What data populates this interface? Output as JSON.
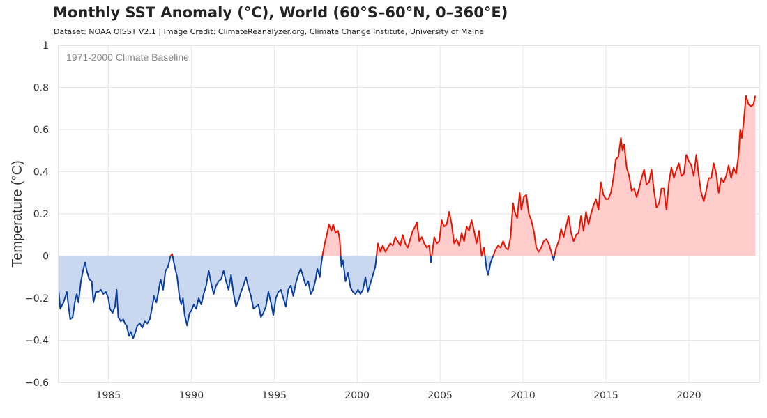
{
  "title": "Monthly SST Anomaly (°C), World (60°S–60°N, 0–360°E)",
  "subtitle": "Dataset: NOAA OISST V2.1 | Image Credit: ClimateReanalyzer.org, Climate Change Institute, University of Maine",
  "chart_data": {
    "type": "area",
    "title": "Monthly SST Anomaly (°C), World (60°S–60°N, 0–360°E)",
    "xlabel": "",
    "ylabel": "Temperature (°C)",
    "annotation": "1971-2000 Climate Baseline",
    "xlim": [
      1982.0,
      2024.25
    ],
    "ylim": [
      -0.6,
      1.0
    ],
    "xticks": [
      1985,
      1990,
      1995,
      2000,
      2005,
      2010,
      2015,
      2020
    ],
    "xtick_labels": [
      "1985",
      "1990",
      "1995",
      "2000",
      "2005",
      "2010",
      "2015",
      "2020"
    ],
    "yticks": [
      -0.6,
      -0.4,
      -0.2,
      0,
      0.2,
      0.4,
      0.6,
      0.8,
      1
    ],
    "ytick_labels": [
      "−0.6",
      "−0.4",
      "−0.2",
      "0",
      "0.2",
      "0.4",
      "0.6",
      "0.8",
      "1"
    ],
    "grid": true,
    "colors": {
      "positive_line": "#ee1100",
      "positive_fill": "#ffcccc",
      "negative_line": "#0a3fa0",
      "negative_fill": "#cad8ef",
      "grid": "#e6e6e6",
      "axis": "#cccccc"
    },
    "series": [
      {
        "name": "Monthly SST Anomaly",
        "points": [
          [
            1982.0,
            -0.16
          ],
          [
            1982.1,
            -0.25
          ],
          [
            1982.3,
            -0.22
          ],
          [
            1982.5,
            -0.17
          ],
          [
            1982.6,
            -0.24
          ],
          [
            1982.7,
            -0.3
          ],
          [
            1982.85,
            -0.29
          ],
          [
            1983.0,
            -0.21
          ],
          [
            1983.1,
            -0.18
          ],
          [
            1983.2,
            -0.22
          ],
          [
            1983.35,
            -0.12
          ],
          [
            1983.5,
            -0.06
          ],
          [
            1983.6,
            -0.03
          ],
          [
            1983.7,
            -0.07
          ],
          [
            1983.85,
            -0.11
          ],
          [
            1984.0,
            -0.12
          ],
          [
            1984.1,
            -0.22
          ],
          [
            1984.25,
            -0.17
          ],
          [
            1984.4,
            -0.17
          ],
          [
            1984.55,
            -0.16
          ],
          [
            1984.7,
            -0.18
          ],
          [
            1984.85,
            -0.17
          ],
          [
            1985.0,
            -0.2
          ],
          [
            1985.1,
            -0.25
          ],
          [
            1985.25,
            -0.27
          ],
          [
            1985.4,
            -0.24
          ],
          [
            1985.5,
            -0.16
          ],
          [
            1985.6,
            -0.29
          ],
          [
            1985.75,
            -0.31
          ],
          [
            1985.9,
            -0.3
          ],
          [
            1986.0,
            -0.32
          ],
          [
            1986.1,
            -0.33
          ],
          [
            1986.25,
            -0.38
          ],
          [
            1986.35,
            -0.36
          ],
          [
            1986.5,
            -0.39
          ],
          [
            1986.6,
            -0.37
          ],
          [
            1986.75,
            -0.33
          ],
          [
            1986.9,
            -0.32
          ],
          [
            1987.05,
            -0.34
          ],
          [
            1987.2,
            -0.31
          ],
          [
            1987.35,
            -0.32
          ],
          [
            1987.5,
            -0.3
          ],
          [
            1987.65,
            -0.24
          ],
          [
            1987.75,
            -0.19
          ],
          [
            1987.9,
            -0.22
          ],
          [
            1988.0,
            -0.18
          ],
          [
            1988.15,
            -0.11
          ],
          [
            1988.3,
            -0.16
          ],
          [
            1988.45,
            -0.07
          ],
          [
            1988.6,
            -0.05
          ],
          [
            1988.75,
            -0.0
          ],
          [
            1988.85,
            0.01
          ],
          [
            1989.0,
            -0.05
          ],
          [
            1989.15,
            -0.1
          ],
          [
            1989.3,
            -0.2
          ],
          [
            1989.4,
            -0.23
          ],
          [
            1989.5,
            -0.2
          ],
          [
            1989.6,
            -0.28
          ],
          [
            1989.75,
            -0.33
          ],
          [
            1989.9,
            -0.27
          ],
          [
            1990.0,
            -0.26
          ],
          [
            1990.15,
            -0.23
          ],
          [
            1990.3,
            -0.25
          ],
          [
            1990.45,
            -0.2
          ],
          [
            1990.6,
            -0.23
          ],
          [
            1990.75,
            -0.18
          ],
          [
            1990.9,
            -0.14
          ],
          [
            1991.05,
            -0.07
          ],
          [
            1991.2,
            -0.13
          ],
          [
            1991.35,
            -0.18
          ],
          [
            1991.5,
            -0.14
          ],
          [
            1991.65,
            -0.12
          ],
          [
            1991.8,
            -0.11
          ],
          [
            1991.95,
            -0.07
          ],
          [
            1992.1,
            -0.12
          ],
          [
            1992.25,
            -0.16
          ],
          [
            1992.4,
            -0.09
          ],
          [
            1992.55,
            -0.18
          ],
          [
            1992.7,
            -0.24
          ],
          [
            1992.85,
            -0.21
          ],
          [
            1993.0,
            -0.17
          ],
          [
            1993.15,
            -0.14
          ],
          [
            1993.3,
            -0.1
          ],
          [
            1993.45,
            -0.15
          ],
          [
            1993.6,
            -0.19
          ],
          [
            1993.75,
            -0.25
          ],
          [
            1993.9,
            -0.24
          ],
          [
            1994.05,
            -0.23
          ],
          [
            1994.2,
            -0.29
          ],
          [
            1994.35,
            -0.27
          ],
          [
            1994.5,
            -0.24
          ],
          [
            1994.65,
            -0.17
          ],
          [
            1994.8,
            -0.22
          ],
          [
            1994.95,
            -0.28
          ],
          [
            1995.1,
            -0.2
          ],
          [
            1995.25,
            -0.17
          ],
          [
            1995.4,
            -0.16
          ],
          [
            1995.55,
            -0.2
          ],
          [
            1995.7,
            -0.24
          ],
          [
            1995.85,
            -0.16
          ],
          [
            1996.0,
            -0.14
          ],
          [
            1996.15,
            -0.19
          ],
          [
            1996.3,
            -0.13
          ],
          [
            1996.45,
            -0.09
          ],
          [
            1996.6,
            -0.06
          ],
          [
            1996.75,
            -0.1
          ],
          [
            1996.9,
            -0.14
          ],
          [
            1997.05,
            -0.12
          ],
          [
            1997.2,
            -0.18
          ],
          [
            1997.35,
            -0.16
          ],
          [
            1997.5,
            -0.11
          ],
          [
            1997.6,
            -0.06
          ],
          [
            1997.75,
            -0.1
          ],
          [
            1997.85,
            -0.03
          ],
          [
            1997.95,
            0.02
          ],
          [
            1998.05,
            0.06
          ],
          [
            1998.2,
            0.11
          ],
          [
            1998.3,
            0.15
          ],
          [
            1998.45,
            0.12
          ],
          [
            1998.55,
            0.15
          ],
          [
            1998.7,
            0.11
          ],
          [
            1998.85,
            0.12
          ],
          [
            1998.95,
            0.08
          ],
          [
            1999.05,
            -0.05
          ],
          [
            1999.15,
            -0.02
          ],
          [
            1999.3,
            -0.12
          ],
          [
            1999.45,
            -0.08
          ],
          [
            1999.6,
            -0.15
          ],
          [
            1999.75,
            -0.17
          ],
          [
            1999.9,
            -0.18
          ],
          [
            2000.05,
            -0.16
          ],
          [
            2000.2,
            -0.18
          ],
          [
            2000.35,
            -0.16
          ],
          [
            2000.5,
            -0.1
          ],
          [
            2000.65,
            -0.17
          ],
          [
            2000.8,
            -0.13
          ],
          [
            2000.95,
            -0.09
          ],
          [
            2001.1,
            -0.05
          ],
          [
            2001.25,
            0.06
          ],
          [
            2001.4,
            0.02
          ],
          [
            2001.55,
            0.05
          ],
          [
            2001.7,
            0.02
          ],
          [
            2001.85,
            0.04
          ],
          [
            2002.0,
            0.06
          ],
          [
            2002.15,
            0.05
          ],
          [
            2002.3,
            0.09
          ],
          [
            2002.45,
            0.07
          ],
          [
            2002.6,
            0.05
          ],
          [
            2002.75,
            0.1
          ],
          [
            2002.9,
            0.06
          ],
          [
            2003.05,
            0.04
          ],
          [
            2003.2,
            0.08
          ],
          [
            2003.35,
            0.12
          ],
          [
            2003.5,
            0.14
          ],
          [
            2003.6,
            0.16
          ],
          [
            2003.75,
            0.07
          ],
          [
            2003.9,
            0.09
          ],
          [
            2004.05,
            0.06
          ],
          [
            2004.2,
            0.04
          ],
          [
            2004.35,
            0.05
          ],
          [
            2004.45,
            -0.03
          ],
          [
            2004.55,
            0.03
          ],
          [
            2004.65,
            0.09
          ],
          [
            2004.8,
            0.06
          ],
          [
            2004.95,
            0.07
          ],
          [
            2005.1,
            0.17
          ],
          [
            2005.25,
            0.14
          ],
          [
            2005.4,
            0.15
          ],
          [
            2005.55,
            0.21
          ],
          [
            2005.7,
            0.15
          ],
          [
            2005.85,
            0.06
          ],
          [
            2006.0,
            0.08
          ],
          [
            2006.15,
            0.05
          ],
          [
            2006.3,
            0.11
          ],
          [
            2006.45,
            0.07
          ],
          [
            2006.6,
            0.14
          ],
          [
            2006.75,
            0.12
          ],
          [
            2006.9,
            0.17
          ],
          [
            2007.05,
            0.12
          ],
          [
            2007.2,
            0.06
          ],
          [
            2007.35,
            0.12
          ],
          [
            2007.5,
            0.0
          ],
          [
            2007.65,
            0.04
          ],
          [
            2007.8,
            -0.06
          ],
          [
            2007.9,
            -0.09
          ],
          [
            2008.05,
            -0.03
          ],
          [
            2008.2,
            0.0
          ],
          [
            2008.35,
            0.03
          ],
          [
            2008.5,
            0.05
          ],
          [
            2008.65,
            0.04
          ],
          [
            2008.8,
            0.07
          ],
          [
            2008.95,
            0.04
          ],
          [
            2009.1,
            0.03
          ],
          [
            2009.25,
            0.09
          ],
          [
            2009.4,
            0.25
          ],
          [
            2009.5,
            0.21
          ],
          [
            2009.65,
            0.18
          ],
          [
            2009.8,
            0.3
          ],
          [
            2009.9,
            0.22
          ],
          [
            2010.05,
            0.28
          ],
          [
            2010.2,
            0.29
          ],
          [
            2010.35,
            0.2
          ],
          [
            2010.5,
            0.17
          ],
          [
            2010.65,
            0.12
          ],
          [
            2010.8,
            0.04
          ],
          [
            2010.95,
            0.02
          ],
          [
            2011.1,
            0.04
          ],
          [
            2011.25,
            0.07
          ],
          [
            2011.4,
            0.08
          ],
          [
            2011.55,
            0.06
          ],
          [
            2011.7,
            0.02
          ],
          [
            2011.85,
            -0.02
          ],
          [
            2012.0,
            0.04
          ],
          [
            2012.15,
            0.07
          ],
          [
            2012.3,
            0.13
          ],
          [
            2012.45,
            0.09
          ],
          [
            2012.6,
            0.14
          ],
          [
            2012.75,
            0.19
          ],
          [
            2012.9,
            0.11
          ],
          [
            2013.05,
            0.07
          ],
          [
            2013.2,
            0.1
          ],
          [
            2013.35,
            0.11
          ],
          [
            2013.5,
            0.19
          ],
          [
            2013.65,
            0.12
          ],
          [
            2013.8,
            0.21
          ],
          [
            2013.95,
            0.15
          ],
          [
            2014.1,
            0.2
          ],
          [
            2014.25,
            0.24
          ],
          [
            2014.4,
            0.27
          ],
          [
            2014.55,
            0.22
          ],
          [
            2014.7,
            0.35
          ],
          [
            2014.85,
            0.29
          ],
          [
            2015.0,
            0.27
          ],
          [
            2015.15,
            0.27
          ],
          [
            2015.3,
            0.3
          ],
          [
            2015.45,
            0.37
          ],
          [
            2015.6,
            0.46
          ],
          [
            2015.75,
            0.47
          ],
          [
            2015.9,
            0.56
          ],
          [
            2016.0,
            0.5
          ],
          [
            2016.1,
            0.53
          ],
          [
            2016.25,
            0.42
          ],
          [
            2016.4,
            0.38
          ],
          [
            2016.55,
            0.31
          ],
          [
            2016.7,
            0.32
          ],
          [
            2016.85,
            0.28
          ],
          [
            2017.0,
            0.32
          ],
          [
            2017.15,
            0.37
          ],
          [
            2017.3,
            0.41
          ],
          [
            2017.45,
            0.34
          ],
          [
            2017.6,
            0.35
          ],
          [
            2017.75,
            0.41
          ],
          [
            2017.9,
            0.31
          ],
          [
            2018.05,
            0.23
          ],
          [
            2018.2,
            0.25
          ],
          [
            2018.35,
            0.32
          ],
          [
            2018.5,
            0.32
          ],
          [
            2018.65,
            0.22
          ],
          [
            2018.8,
            0.35
          ],
          [
            2018.95,
            0.42
          ],
          [
            2019.1,
            0.37
          ],
          [
            2019.25,
            0.41
          ],
          [
            2019.4,
            0.44
          ],
          [
            2019.55,
            0.38
          ],
          [
            2019.7,
            0.39
          ],
          [
            2019.85,
            0.48
          ],
          [
            2020.0,
            0.45
          ],
          [
            2020.15,
            0.43
          ],
          [
            2020.3,
            0.38
          ],
          [
            2020.45,
            0.48
          ],
          [
            2020.6,
            0.38
          ],
          [
            2020.75,
            0.3
          ],
          [
            2020.9,
            0.26
          ],
          [
            2021.05,
            0.31
          ],
          [
            2021.2,
            0.37
          ],
          [
            2021.35,
            0.37
          ],
          [
            2021.5,
            0.44
          ],
          [
            2021.65,
            0.39
          ],
          [
            2021.8,
            0.3
          ],
          [
            2021.95,
            0.37
          ],
          [
            2022.1,
            0.35
          ],
          [
            2022.25,
            0.38
          ],
          [
            2022.4,
            0.43
          ],
          [
            2022.55,
            0.37
          ],
          [
            2022.7,
            0.42
          ],
          [
            2022.85,
            0.39
          ],
          [
            2023.0,
            0.48
          ],
          [
            2023.1,
            0.6
          ],
          [
            2023.2,
            0.56
          ],
          [
            2023.3,
            0.63
          ],
          [
            2023.45,
            0.76
          ],
          [
            2023.6,
            0.72
          ],
          [
            2023.75,
            0.71
          ],
          [
            2023.9,
            0.72
          ],
          [
            2024.0,
            0.76
          ]
        ]
      }
    ]
  }
}
